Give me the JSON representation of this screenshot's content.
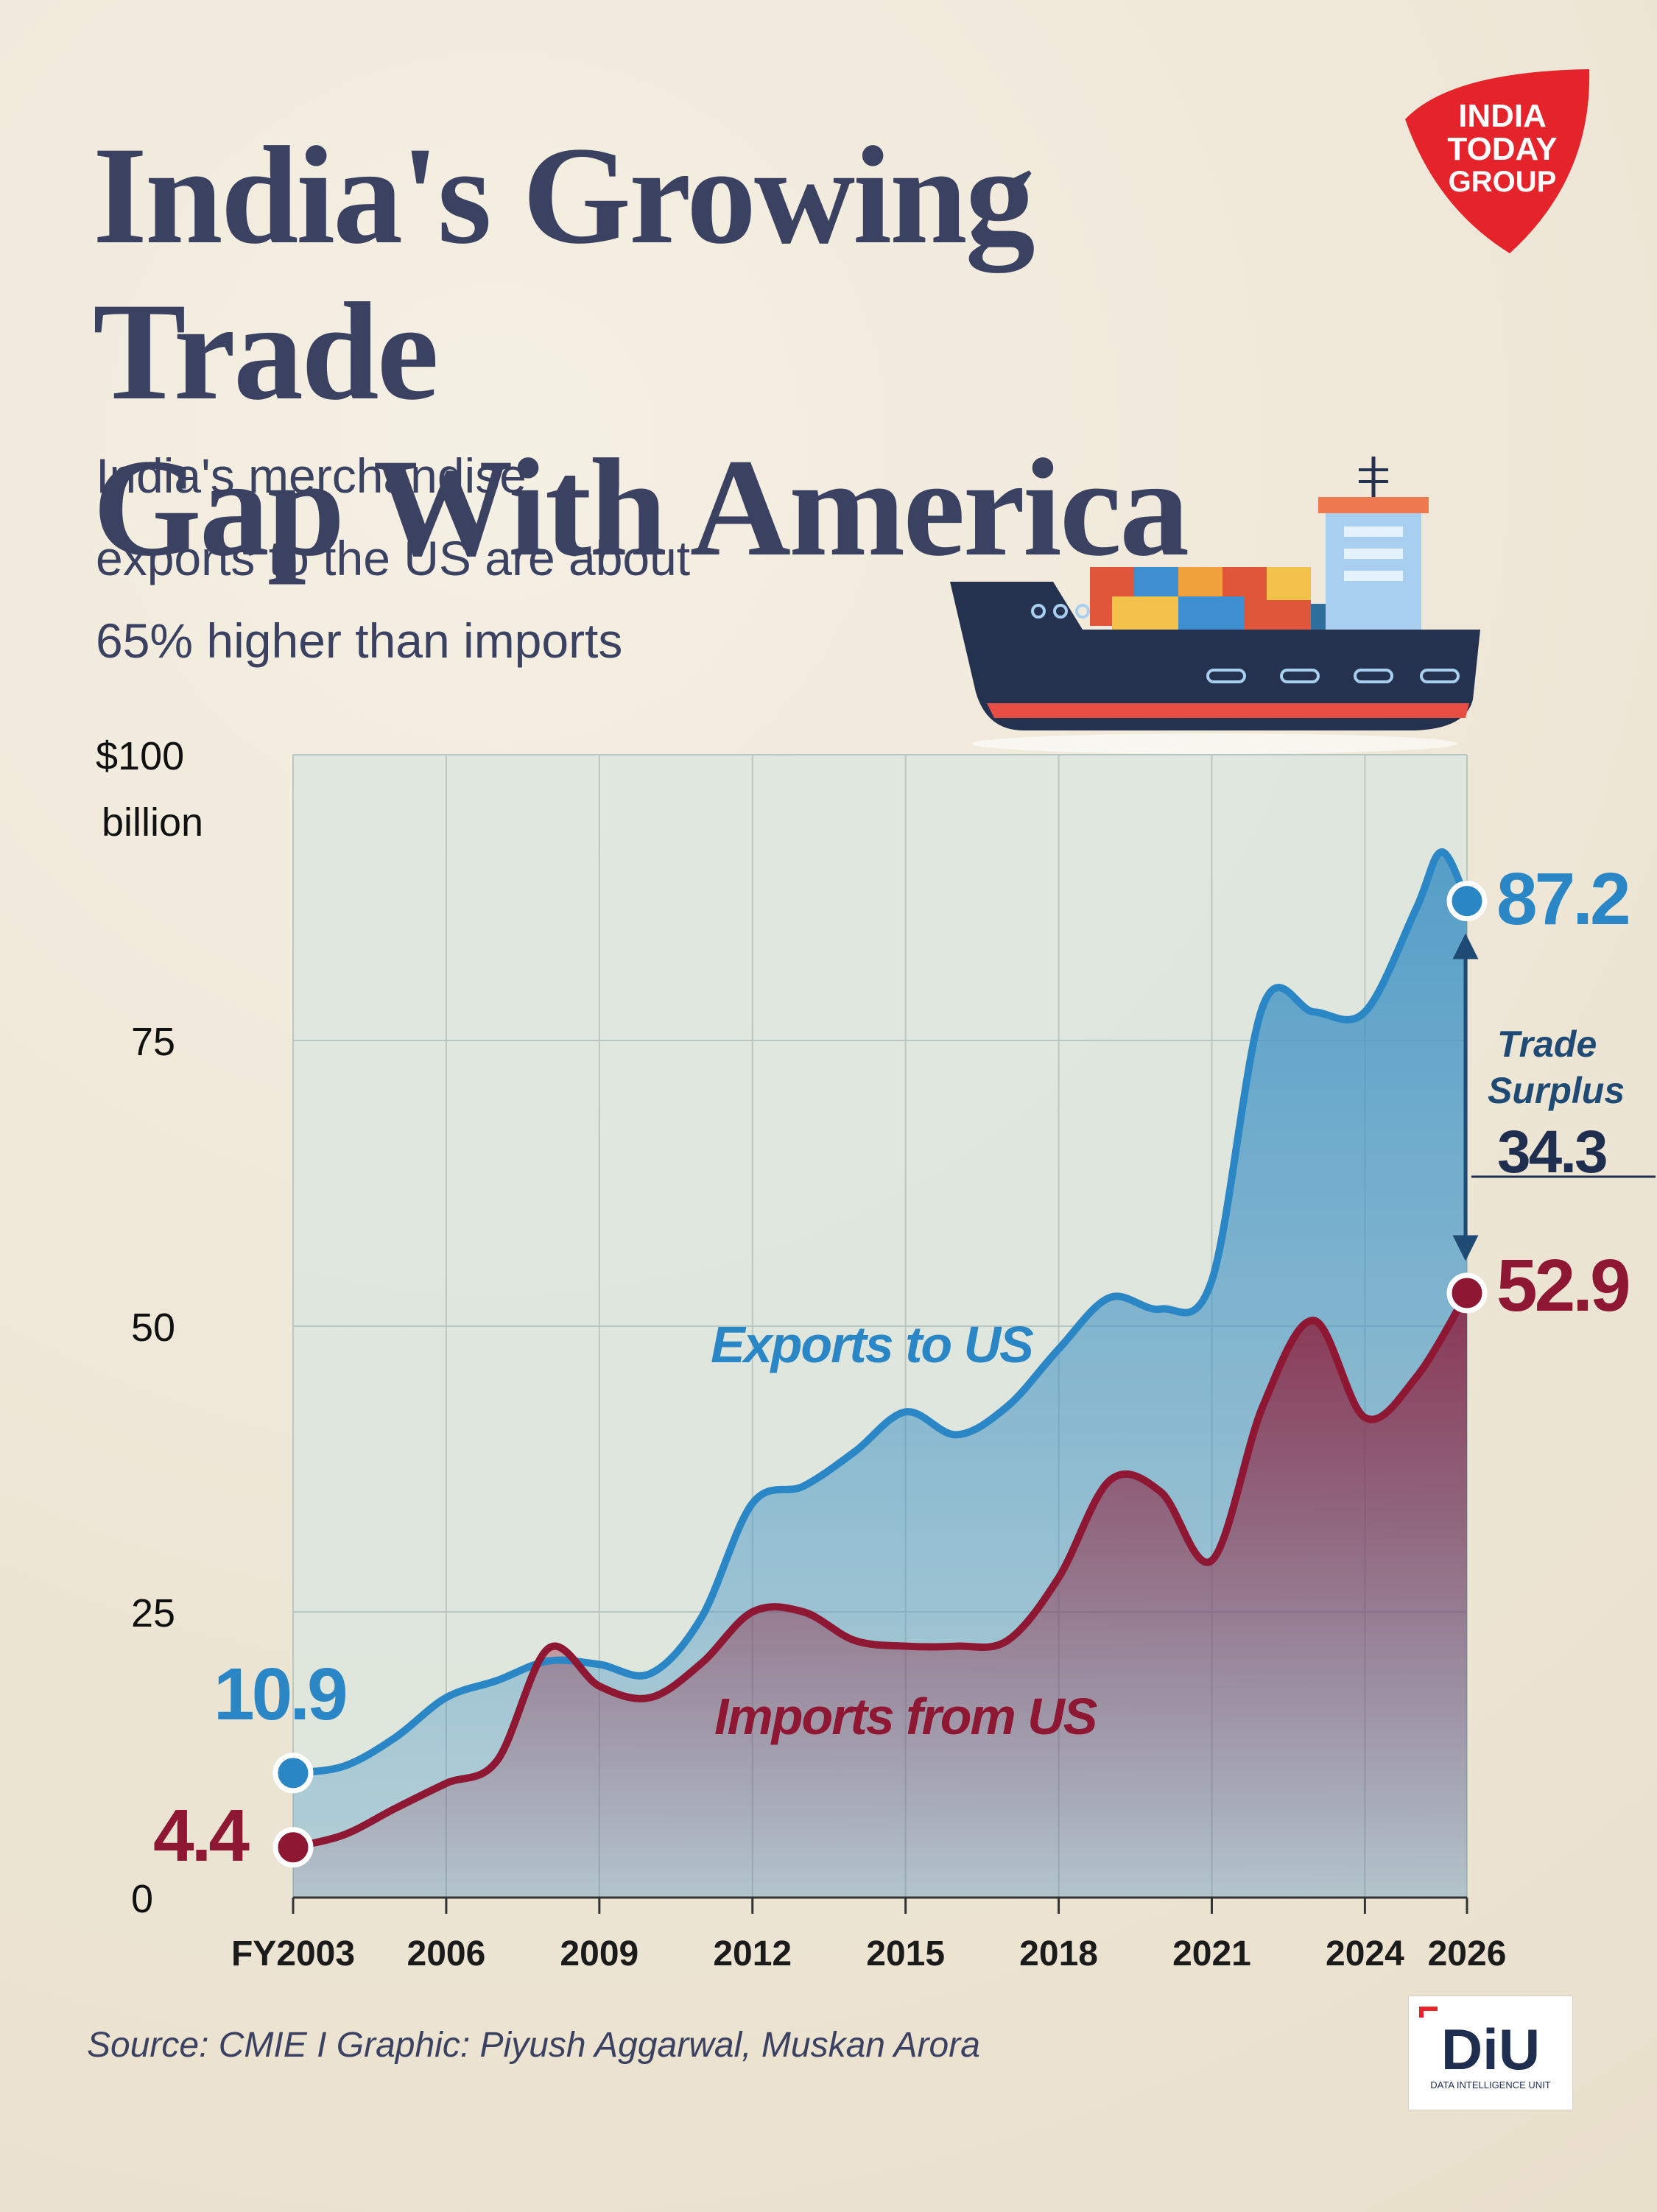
{
  "header": {
    "title_line1": "India's Growing Trade",
    "title_line2": "Gap With America",
    "subtitle_line1": "India's merchandise",
    "subtitle_line2": "exports to the US are about",
    "subtitle_line3": "65% higher than imports"
  },
  "logo": {
    "line1": "INDIA",
    "line2": "TODAY",
    "line3": "GROUP",
    "color": "#e4232b"
  },
  "diu_logo": {
    "mark": "DiU",
    "tagline": "DATA INTELLIGENCE UNIT"
  },
  "source": "Source: CMIE I Graphic: Piyush Aggarwal, Muskan Arora",
  "colors": {
    "exports": "#2a86c4",
    "imports": "#8e1734",
    "text": "#3b4161",
    "surplus": "#1f4a73"
  },
  "chart_data": {
    "type": "area",
    "ylim": [
      0,
      100
    ],
    "xlim": [
      2003,
      2026
    ],
    "yticks": [
      "0",
      "25",
      "50",
      "75",
      "$100"
    ],
    "ytick_values": [
      0,
      25,
      50,
      75,
      100
    ],
    "yunit": "billion",
    "xticks": [
      "FY2003",
      "2006",
      "2009",
      "2012",
      "2015",
      "2018",
      "2021",
      "2024",
      "2026"
    ],
    "xtick_values": [
      2003,
      2006,
      2009,
      2012,
      2015,
      2018,
      2021,
      2024,
      2026
    ],
    "series": [
      {
        "name": "Exports to US",
        "x": [
          2003,
          2004,
          2005,
          2006,
          2007,
          2008,
          2009,
          2010,
          2011,
          2012,
          2013,
          2014,
          2015,
          2016,
          2017,
          2018,
          2019,
          2020,
          2021,
          2022,
          2023,
          2024,
          2025,
          2025.5,
          2026
        ],
        "values": [
          10.9,
          11.5,
          14.0,
          17.5,
          19.0,
          20.7,
          20.4,
          19.6,
          24.5,
          34.5,
          36.0,
          39.0,
          42.5,
          40.5,
          43.0,
          48.0,
          52.5,
          51.5,
          54.0,
          78.0,
          77.5,
          77.5,
          86.5,
          91.5,
          87.2
        ],
        "start_label": "10.9",
        "end_label": "87.2"
      },
      {
        "name": "Imports from US",
        "x": [
          2003,
          2004,
          2005,
          2006,
          2007,
          2008,
          2009,
          2010,
          2011,
          2012,
          2013,
          2014,
          2015,
          2016,
          2017,
          2018,
          2019,
          2020,
          2021,
          2022,
          2023,
          2024,
          2025,
          2026
        ],
        "values": [
          4.4,
          5.5,
          7.8,
          10.0,
          12.0,
          21.8,
          18.5,
          17.5,
          20.5,
          25.0,
          25.0,
          22.5,
          22.0,
          22.0,
          22.5,
          28.0,
          36.5,
          35.5,
          29.5,
          43.0,
          50.5,
          42.0,
          45.5,
          52.9
        ],
        "start_label": "4.4",
        "end_label": "52.9"
      }
    ],
    "annotations": {
      "surplus_line1": "Trade",
      "surplus_line2": "Surplus",
      "surplus_value": "34.3"
    }
  }
}
